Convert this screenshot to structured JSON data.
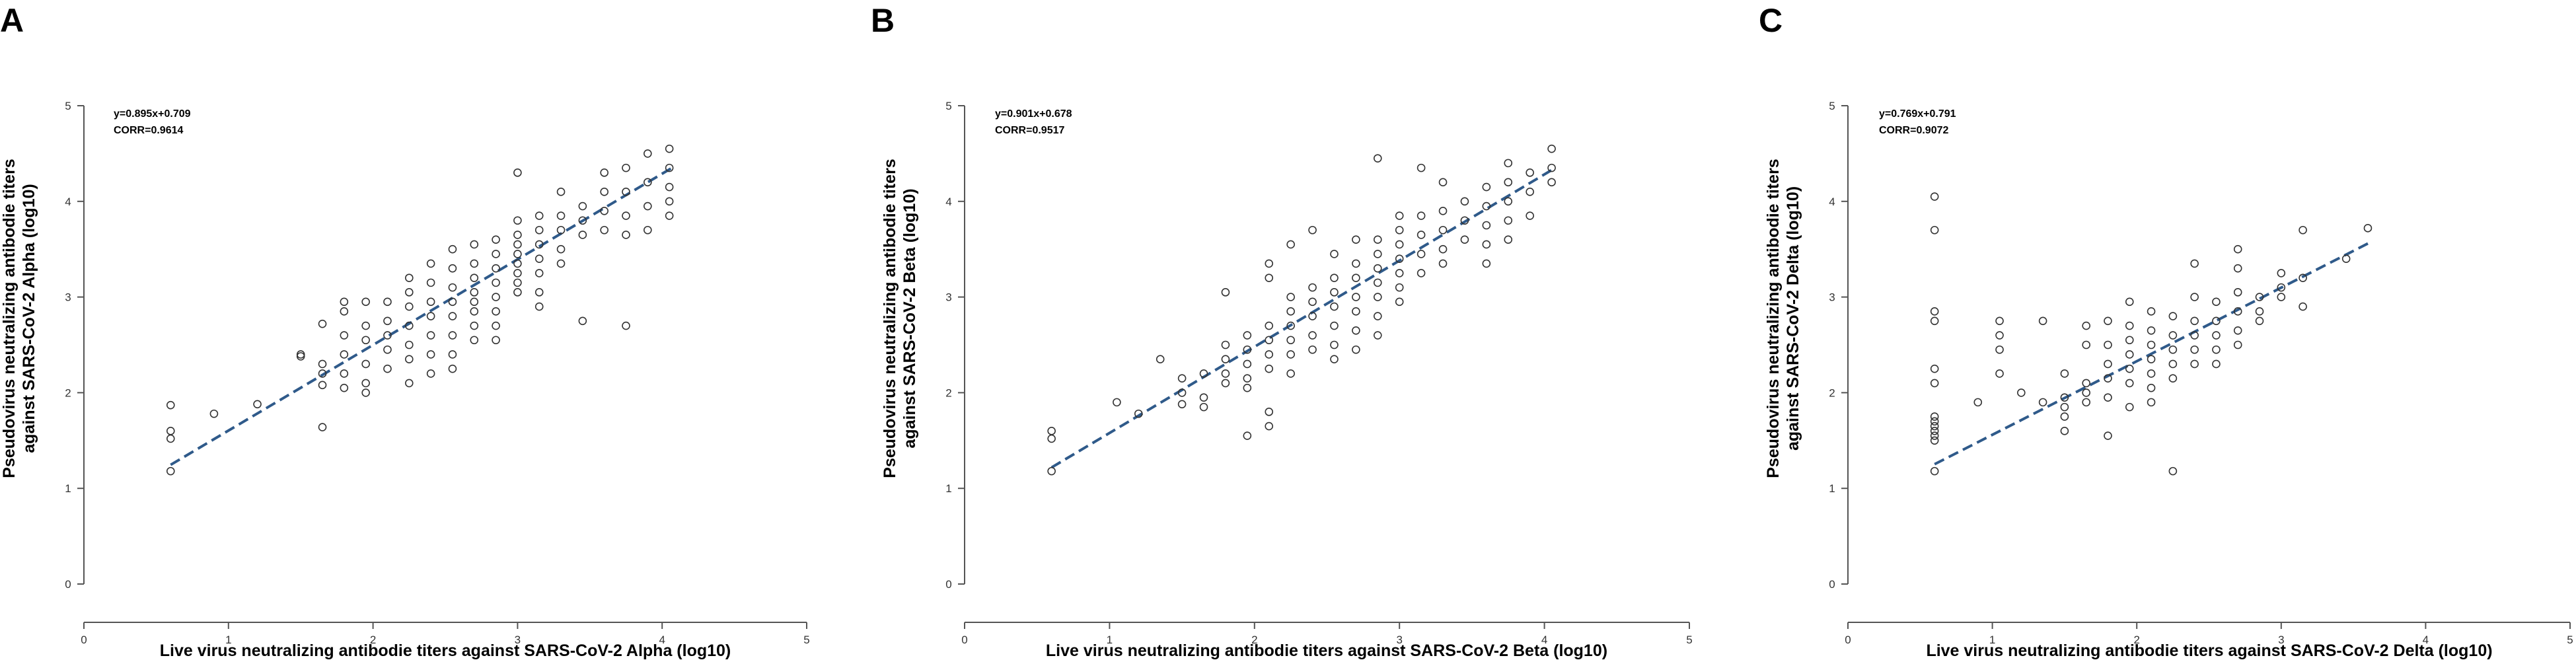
{
  "figure": {
    "panels": [
      {
        "letter": "A",
        "variant": "Alpha",
        "equation": "y=0.895x+0.709",
        "corr": "CORR=0.9614",
        "ylabel_line1": "Pseudovirus neutralizing antibodie titers",
        "ylabel_line2": "against SARS-CoV-2 Alpha (log10)",
        "xlabel": "Live virus neutralizing antibodie titers against SARS-CoV-2 Alpha (log10)"
      },
      {
        "letter": "B",
        "variant": "Beta",
        "equation": "y=0.901x+0.678",
        "corr": "CORR=0.9517",
        "ylabel_line1": "Pseudovirus neutralizing antibodie titers",
        "ylabel_line2": "against SARS-CoV-2 Beta (log10)",
        "xlabel": "Live virus neutralizing antibodie titers against SARS-CoV-2 Beta (log10)"
      },
      {
        "letter": "C",
        "variant": "Delta",
        "equation": "y=0.769x+0.791",
        "corr": "CORR=0.9072",
        "ylabel_line1": "Pseudovirus neutralizing antibodie titers",
        "ylabel_line2": "against SARS-CoV-2 Delta (log10)",
        "xlabel": "Live virus neutralizing antibodie titers against SARS-CoV-2 Delta (log10)"
      }
    ]
  },
  "chart_data": [
    {
      "type": "scatter",
      "title": "",
      "xlabel": "Live virus neutralizing antibodie titers against SARS-CoV-2 Alpha (log10)",
      "ylabel": "Pseudovirus neutralizing antibodie titers against SARS-CoV-2 Alpha (log10)",
      "xlim": [
        0,
        5
      ],
      "ylim": [
        0,
        5
      ],
      "xticks": [
        "0",
        "1",
        "2",
        "3",
        "4",
        "5"
      ],
      "yticks": [
        "0",
        "1",
        "2",
        "3",
        "4",
        "5"
      ],
      "grid": false,
      "fit": {
        "slope": 0.895,
        "intercept": 0.709,
        "x_range": [
          0.6,
          4.06
        ]
      },
      "fit_color": "#2f5a8a",
      "points": [
        [
          0.6,
          1.87
        ],
        [
          0.6,
          1.6
        ],
        [
          0.6,
          1.52
        ],
        [
          0.6,
          1.18
        ],
        [
          0.9,
          1.78
        ],
        [
          1.2,
          1.88
        ],
        [
          1.5,
          2.4
        ],
        [
          1.5,
          2.38
        ],
        [
          1.65,
          2.2
        ],
        [
          1.65,
          2.3
        ],
        [
          1.65,
          2.08
        ],
        [
          1.65,
          1.64
        ],
        [
          1.65,
          2.72
        ],
        [
          1.8,
          2.95
        ],
        [
          1.8,
          2.6
        ],
        [
          1.8,
          2.4
        ],
        [
          1.8,
          2.2
        ],
        [
          1.8,
          2.05
        ],
        [
          1.8,
          2.85
        ],
        [
          1.95,
          2.55
        ],
        [
          1.95,
          2.3
        ],
        [
          1.95,
          2.1
        ],
        [
          1.95,
          2.0
        ],
        [
          1.95,
          2.7
        ],
        [
          1.95,
          2.95
        ],
        [
          2.1,
          2.75
        ],
        [
          2.1,
          2.6
        ],
        [
          2.1,
          2.45
        ],
        [
          2.1,
          2.25
        ],
        [
          2.1,
          2.95
        ],
        [
          2.25,
          3.2
        ],
        [
          2.25,
          3.05
        ],
        [
          2.25,
          2.9
        ],
        [
          2.25,
          2.7
        ],
        [
          2.25,
          2.5
        ],
        [
          2.25,
          2.35
        ],
        [
          2.25,
          2.1
        ],
        [
          2.4,
          3.35
        ],
        [
          2.4,
          3.15
        ],
        [
          2.4,
          2.95
        ],
        [
          2.4,
          2.8
        ],
        [
          2.4,
          2.6
        ],
        [
          2.4,
          2.4
        ],
        [
          2.4,
          2.2
        ],
        [
          2.55,
          3.5
        ],
        [
          2.55,
          3.3
        ],
        [
          2.55,
          3.1
        ],
        [
          2.55,
          2.95
        ],
        [
          2.55,
          2.8
        ],
        [
          2.55,
          2.6
        ],
        [
          2.55,
          2.4
        ],
        [
          2.55,
          2.25
        ],
        [
          2.7,
          3.55
        ],
        [
          2.7,
          3.35
        ],
        [
          2.7,
          3.2
        ],
        [
          2.7,
          3.05
        ],
        [
          2.7,
          2.95
        ],
        [
          2.7,
          2.85
        ],
        [
          2.7,
          2.7
        ],
        [
          2.7,
          2.55
        ],
        [
          2.85,
          3.6
        ],
        [
          2.85,
          3.45
        ],
        [
          2.85,
          3.3
        ],
        [
          2.85,
          3.15
        ],
        [
          2.85,
          3.0
        ],
        [
          2.85,
          2.85
        ],
        [
          2.85,
          2.7
        ],
        [
          2.85,
          2.55
        ],
        [
          3.0,
          4.3
        ],
        [
          3.0,
          3.8
        ],
        [
          3.0,
          3.65
        ],
        [
          3.0,
          3.55
        ],
        [
          3.0,
          3.45
        ],
        [
          3.0,
          3.35
        ],
        [
          3.0,
          3.25
        ],
        [
          3.0,
          3.15
        ],
        [
          3.0,
          3.05
        ],
        [
          3.15,
          3.85
        ],
        [
          3.15,
          3.7
        ],
        [
          3.15,
          3.55
        ],
        [
          3.15,
          3.4
        ],
        [
          3.15,
          3.25
        ],
        [
          3.15,
          3.05
        ],
        [
          3.15,
          2.9
        ],
        [
          3.3,
          4.1
        ],
        [
          3.3,
          3.85
        ],
        [
          3.3,
          3.7
        ],
        [
          3.3,
          3.5
        ],
        [
          3.3,
          3.35
        ],
        [
          3.45,
          3.95
        ],
        [
          3.45,
          3.8
        ],
        [
          3.45,
          3.65
        ],
        [
          3.45,
          2.75
        ],
        [
          3.6,
          4.3
        ],
        [
          3.6,
          4.1
        ],
        [
          3.6,
          3.9
        ],
        [
          3.6,
          3.7
        ],
        [
          3.75,
          4.35
        ],
        [
          3.75,
          4.1
        ],
        [
          3.75,
          3.85
        ],
        [
          3.75,
          3.65
        ],
        [
          3.75,
          2.7
        ],
        [
          3.9,
          4.5
        ],
        [
          3.9,
          4.2
        ],
        [
          3.9,
          3.95
        ],
        [
          3.9,
          3.7
        ],
        [
          4.05,
          4.55
        ],
        [
          4.05,
          4.35
        ],
        [
          4.05,
          4.15
        ],
        [
          4.05,
          4.0
        ],
        [
          4.05,
          3.85
        ]
      ]
    },
    {
      "type": "scatter",
      "title": "",
      "xlabel": "Live virus neutralizing antibodie titers against SARS-CoV-2 Beta (log10)",
      "ylabel": "Pseudovirus neutralizing antibodie titers against SARS-CoV-2 Beta (log10)",
      "xlim": [
        0,
        5
      ],
      "ylim": [
        0,
        5
      ],
      "xticks": [
        "0",
        "1",
        "2",
        "3",
        "4",
        "5"
      ],
      "yticks": [
        "0",
        "1",
        "2",
        "3",
        "4",
        "5"
      ],
      "grid": false,
      "fit": {
        "slope": 0.901,
        "intercept": 0.678,
        "x_range": [
          0.6,
          4.06
        ]
      },
      "fit_color": "#2f5a8a",
      "points": [
        [
          0.6,
          1.6
        ],
        [
          0.6,
          1.52
        ],
        [
          0.6,
          1.18
        ],
        [
          1.05,
          1.9
        ],
        [
          1.2,
          1.78
        ],
        [
          1.35,
          2.35
        ],
        [
          1.5,
          2.15
        ],
        [
          1.5,
          2.0
        ],
        [
          1.5,
          1.88
        ],
        [
          1.65,
          2.2
        ],
        [
          1.65,
          1.95
        ],
        [
          1.65,
          1.85
        ],
        [
          1.8,
          2.5
        ],
        [
          1.8,
          2.35
        ],
        [
          1.8,
          2.2
        ],
        [
          1.8,
          2.1
        ],
        [
          1.8,
          3.05
        ],
        [
          1.95,
          2.6
        ],
        [
          1.95,
          2.45
        ],
        [
          1.95,
          2.3
        ],
        [
          1.95,
          2.15
        ],
        [
          1.95,
          2.05
        ],
        [
          1.95,
          1.55
        ],
        [
          2.1,
          2.7
        ],
        [
          2.1,
          2.55
        ],
        [
          2.1,
          2.4
        ],
        [
          2.1,
          2.25
        ],
        [
          2.1,
          1.8
        ],
        [
          2.1,
          1.65
        ],
        [
          2.1,
          3.2
        ],
        [
          2.1,
          3.35
        ],
        [
          2.25,
          3.0
        ],
        [
          2.25,
          2.85
        ],
        [
          2.25,
          2.7
        ],
        [
          2.25,
          2.55
        ],
        [
          2.25,
          2.4
        ],
        [
          2.25,
          2.2
        ],
        [
          2.25,
          3.55
        ],
        [
          2.4,
          3.1
        ],
        [
          2.4,
          2.95
        ],
        [
          2.4,
          2.8
        ],
        [
          2.4,
          2.6
        ],
        [
          2.4,
          2.45
        ],
        [
          2.4,
          3.7
        ],
        [
          2.55,
          3.2
        ],
        [
          2.55,
          3.05
        ],
        [
          2.55,
          2.9
        ],
        [
          2.55,
          2.7
        ],
        [
          2.55,
          2.5
        ],
        [
          2.55,
          2.35
        ],
        [
          2.55,
          3.45
        ],
        [
          2.7,
          3.35
        ],
        [
          2.7,
          3.2
        ],
        [
          2.7,
          3.0
        ],
        [
          2.7,
          2.85
        ],
        [
          2.7,
          2.65
        ],
        [
          2.7,
          2.45
        ],
        [
          2.7,
          3.6
        ],
        [
          2.85,
          3.45
        ],
        [
          2.85,
          3.3
        ],
        [
          2.85,
          3.15
        ],
        [
          2.85,
          3.0
        ],
        [
          2.85,
          2.8
        ],
        [
          2.85,
          2.6
        ],
        [
          2.85,
          4.45
        ],
        [
          2.85,
          3.6
        ],
        [
          3.0,
          3.7
        ],
        [
          3.0,
          3.55
        ],
        [
          3.0,
          3.4
        ],
        [
          3.0,
          3.25
        ],
        [
          3.0,
          3.1
        ],
        [
          3.0,
          2.95
        ],
        [
          3.0,
          3.85
        ],
        [
          3.15,
          3.85
        ],
        [
          3.15,
          3.65
        ],
        [
          3.15,
          3.45
        ],
        [
          3.15,
          3.25
        ],
        [
          3.15,
          4.35
        ],
        [
          3.3,
          3.9
        ],
        [
          3.3,
          3.7
        ],
        [
          3.3,
          3.5
        ],
        [
          3.3,
          3.35
        ],
        [
          3.3,
          4.2
        ],
        [
          3.45,
          4.0
        ],
        [
          3.45,
          3.8
        ],
        [
          3.45,
          3.6
        ],
        [
          3.6,
          4.15
        ],
        [
          3.6,
          3.95
        ],
        [
          3.6,
          3.75
        ],
        [
          3.6,
          3.55
        ],
        [
          3.6,
          3.35
        ],
        [
          3.75,
          4.4
        ],
        [
          3.75,
          4.2
        ],
        [
          3.75,
          4.0
        ],
        [
          3.75,
          3.8
        ],
        [
          3.75,
          3.6
        ],
        [
          3.9,
          4.3
        ],
        [
          3.9,
          4.1
        ],
        [
          3.9,
          3.85
        ],
        [
          4.05,
          4.55
        ],
        [
          4.05,
          4.35
        ],
        [
          4.05,
          4.2
        ]
      ]
    },
    {
      "type": "scatter",
      "title": "",
      "xlabel": "Live virus neutralizing antibodie titers against SARS-CoV-2 Delta (log10)",
      "ylabel": "Pseudovirus neutralizing antibodie titers against SARS-CoV-2 Delta (log10)",
      "xlim": [
        0,
        5
      ],
      "ylim": [
        0,
        5
      ],
      "xticks": [
        "0",
        "1",
        "2",
        "3",
        "4",
        "5"
      ],
      "yticks": [
        "0",
        "1",
        "2",
        "3",
        "4",
        "5"
      ],
      "grid": false,
      "fit": {
        "slope": 0.769,
        "intercept": 0.791,
        "x_range": [
          0.6,
          3.62
        ]
      },
      "fit_color": "#2f5a8a",
      "points": [
        [
          0.6,
          4.05
        ],
        [
          0.6,
          3.7
        ],
        [
          0.6,
          2.85
        ],
        [
          0.6,
          2.75
        ],
        [
          0.6,
          2.25
        ],
        [
          0.6,
          2.1
        ],
        [
          0.6,
          1.75
        ],
        [
          0.6,
          1.7
        ],
        [
          0.6,
          1.65
        ],
        [
          0.6,
          1.6
        ],
        [
          0.6,
          1.55
        ],
        [
          0.6,
          1.5
        ],
        [
          0.6,
          1.18
        ],
        [
          0.9,
          1.9
        ],
        [
          1.05,
          2.75
        ],
        [
          1.05,
          2.6
        ],
        [
          1.05,
          2.45
        ],
        [
          1.05,
          2.2
        ],
        [
          1.2,
          2.0
        ],
        [
          1.35,
          2.75
        ],
        [
          1.35,
          1.9
        ],
        [
          1.5,
          2.2
        ],
        [
          1.5,
          1.95
        ],
        [
          1.5,
          1.85
        ],
        [
          1.5,
          1.75
        ],
        [
          1.5,
          1.6
        ],
        [
          1.65,
          2.7
        ],
        [
          1.65,
          2.5
        ],
        [
          1.65,
          2.1
        ],
        [
          1.65,
          1.9
        ],
        [
          1.65,
          2.0
        ],
        [
          1.8,
          2.75
        ],
        [
          1.8,
          2.5
        ],
        [
          1.8,
          2.3
        ],
        [
          1.8,
          2.15
        ],
        [
          1.8,
          1.95
        ],
        [
          1.8,
          1.55
        ],
        [
          1.95,
          2.95
        ],
        [
          1.95,
          2.7
        ],
        [
          1.95,
          2.55
        ],
        [
          1.95,
          2.4
        ],
        [
          1.95,
          2.25
        ],
        [
          1.95,
          2.1
        ],
        [
          1.95,
          1.85
        ],
        [
          2.1,
          2.85
        ],
        [
          2.1,
          2.65
        ],
        [
          2.1,
          2.5
        ],
        [
          2.1,
          2.35
        ],
        [
          2.1,
          2.2
        ],
        [
          2.1,
          2.05
        ],
        [
          2.1,
          1.9
        ],
        [
          2.25,
          2.8
        ],
        [
          2.25,
          2.6
        ],
        [
          2.25,
          2.45
        ],
        [
          2.25,
          2.3
        ],
        [
          2.25,
          2.15
        ],
        [
          2.25,
          1.18
        ],
        [
          2.4,
          3.35
        ],
        [
          2.4,
          3.0
        ],
        [
          2.4,
          2.75
        ],
        [
          2.4,
          2.6
        ],
        [
          2.4,
          2.45
        ],
        [
          2.4,
          2.3
        ],
        [
          2.55,
          2.95
        ],
        [
          2.55,
          2.75
        ],
        [
          2.55,
          2.6
        ],
        [
          2.55,
          2.45
        ],
        [
          2.55,
          2.3
        ],
        [
          2.7,
          3.5
        ],
        [
          2.7,
          3.3
        ],
        [
          2.7,
          3.05
        ],
        [
          2.7,
          2.85
        ],
        [
          2.7,
          2.65
        ],
        [
          2.7,
          2.5
        ],
        [
          2.85,
          3.0
        ],
        [
          2.85,
          2.85
        ],
        [
          2.85,
          2.75
        ],
        [
          3.0,
          3.25
        ],
        [
          3.0,
          3.1
        ],
        [
          3.0,
          3.0
        ],
        [
          3.15,
          3.7
        ],
        [
          3.15,
          3.2
        ],
        [
          3.15,
          2.9
        ],
        [
          3.45,
          3.4
        ],
        [
          3.6,
          3.72
        ]
      ]
    }
  ]
}
